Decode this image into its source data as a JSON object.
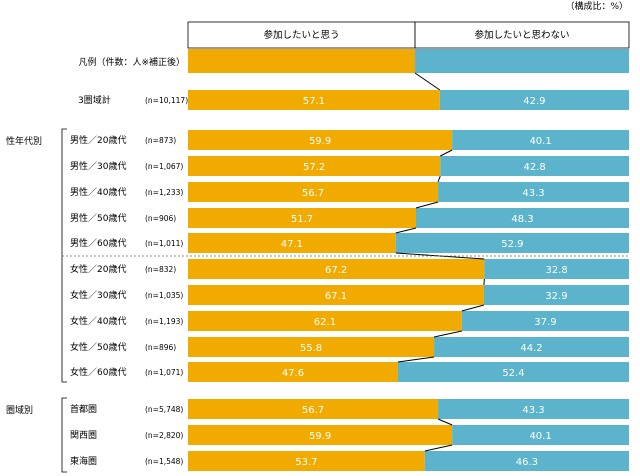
{
  "chart_data": {
    "type": "bar",
    "stacked": true,
    "orientation": "horizontal",
    "unit_note": "（構成比：%）",
    "legend_row_label": "凡例（件数：人※補正後）",
    "series": [
      {
        "name": "参加したいと思う",
        "color": "#F0AA00"
      },
      {
        "name": "参加したいと思わない",
        "color": "#5BB4CC"
      }
    ],
    "legend_split": 44,
    "groups": [
      {
        "label": "",
        "rows": [
          {
            "label": "3圏域計",
            "n": "(n=10,117)",
            "yes": 57.1,
            "no": 42.9
          }
        ]
      },
      {
        "label": "性年代別",
        "rows": [
          {
            "label": "男性／20歳代",
            "n": "(n=873)",
            "yes": 59.9,
            "no": 40.1
          },
          {
            "label": "男性／30歳代",
            "n": "(n=1,067)",
            "yes": 57.2,
            "no": 42.8
          },
          {
            "label": "男性／40歳代",
            "n": "(n=1,233)",
            "yes": 56.7,
            "no": 43.3
          },
          {
            "label": "男性／50歳代",
            "n": "(n=906)",
            "yes": 51.7,
            "no": 48.3
          },
          {
            "label": "男性／60歳代",
            "n": "(n=1,011)",
            "yes": 47.1,
            "no": 52.9
          },
          {
            "label": "女性／20歳代",
            "n": "(n=832)",
            "yes": 67.2,
            "no": 32.8
          },
          {
            "label": "女性／30歳代",
            "n": "(n=1,035)",
            "yes": 67.1,
            "no": 32.9
          },
          {
            "label": "女性／40歳代",
            "n": "(n=1,193)",
            "yes": 62.1,
            "no": 37.9
          },
          {
            "label": "女性／50歳代",
            "n": "(n=896)",
            "yes": 55.8,
            "no": 44.2
          },
          {
            "label": "女性／60歳代",
            "n": "(n=1,071)",
            "yes": 47.6,
            "no": 52.4
          }
        ]
      },
      {
        "label": "圏域別",
        "rows": [
          {
            "label": "首都圏",
            "n": "(n=5,748)",
            "yes": 56.7,
            "no": 43.3
          },
          {
            "label": "関西圏",
            "n": "(n=2,820)",
            "yes": 59.9,
            "no": 40.1
          },
          {
            "label": "東海圏",
            "n": "(n=1,548)",
            "yes": 53.7,
            "no": 46.3
          }
        ]
      }
    ],
    "xlim": [
      0,
      100
    ]
  }
}
